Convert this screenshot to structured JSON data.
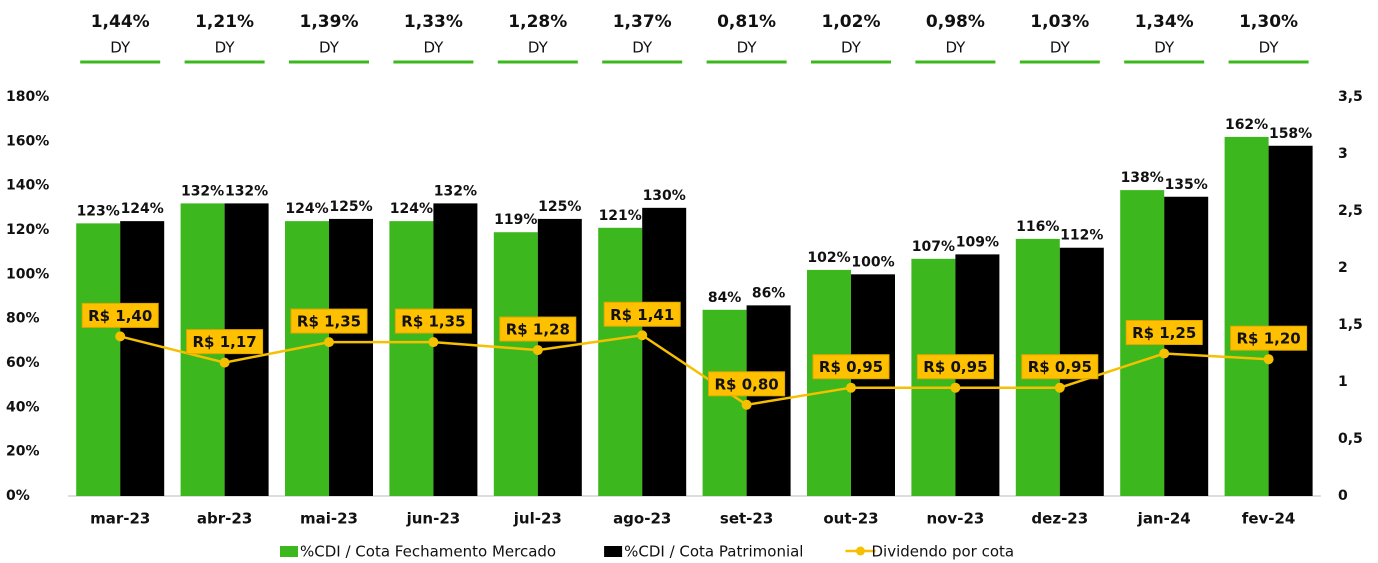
{
  "chart_data": {
    "type": "bar-line",
    "categories": [
      "mar-23",
      "abr-23",
      "mai-23",
      "jun-23",
      "jul-23",
      "ago-23",
      "set-23",
      "out-23",
      "nov-23",
      "dez-23",
      "jan-24",
      "fev-24"
    ],
    "dy": {
      "label": "DY",
      "color": "#3cb81e",
      "values": [
        1.44,
        1.21,
        1.39,
        1.33,
        1.28,
        1.37,
        0.81,
        1.02,
        0.98,
        1.03,
        1.34,
        1.3
      ],
      "value_labels": [
        "1,44%",
        "1,21%",
        "1,39%",
        "1,33%",
        "1,28%",
        "1,37%",
        "0,81%",
        "1,02%",
        "0,98%",
        "1,03%",
        "1,34%",
        "1,30%"
      ]
    },
    "series": [
      {
        "name": "%CDI / Cota Fechamento Mercado",
        "color": "#3cb81e",
        "type": "bar",
        "values": [
          123,
          132,
          124,
          124,
          119,
          121,
          84,
          102,
          107,
          116,
          138,
          162
        ],
        "value_labels": [
          "123%",
          "132%",
          "124%",
          "124%",
          "119%",
          "121%",
          "84%",
          "102%",
          "107%",
          "116%",
          "138%",
          "162%"
        ]
      },
      {
        "name": "%CDI / Cota Patrimonial",
        "color": "#000000",
        "type": "bar",
        "values": [
          124,
          132,
          125,
          132,
          125,
          130,
          86,
          100,
          109,
          112,
          135,
          158
        ],
        "value_labels": [
          "124%",
          "132%",
          "125%",
          "132%",
          "125%",
          "130%",
          "86%",
          "100%",
          "109%",
          "112%",
          "135%",
          "158%"
        ]
      },
      {
        "name": "Dividendo por cota",
        "color": "#f5c000",
        "type": "line",
        "axis": "y2",
        "values": [
          1.4,
          1.17,
          1.35,
          1.35,
          1.28,
          1.41,
          0.8,
          0.95,
          0.95,
          0.95,
          1.25,
          1.2
        ],
        "value_labels": [
          "R$ 1,40",
          "R$ 1,17",
          "R$ 1,35",
          "R$ 1,35",
          "R$ 1,28",
          "R$ 1,41",
          "R$ 0,80",
          "R$ 0,95",
          "R$ 0,95",
          "R$ 0,95",
          "R$ 1,25",
          "R$ 1,20"
        ]
      }
    ],
    "ylim": [
      0,
      180
    ],
    "yticks": [
      {
        "value": 0,
        "label": "0%"
      },
      {
        "value": 20,
        "label": "20%"
      },
      {
        "value": 40,
        "label": "40%"
      },
      {
        "value": 60,
        "label": "60%"
      },
      {
        "value": 80,
        "label": "80%"
      },
      {
        "value": 100,
        "label": "100%"
      },
      {
        "value": 120,
        "label": "120%"
      },
      {
        "value": 140,
        "label": "140%"
      },
      {
        "value": 160,
        "label": "160%"
      },
      {
        "value": 180,
        "label": "180%"
      }
    ],
    "y2lim": [
      0,
      3.5
    ],
    "y2ticks": [
      0,
      {
        "value": 0.5,
        "label": "0,5"
      },
      1,
      {
        "value": 1.5,
        "label": "1,5"
      },
      2,
      {
        "value": 2.5,
        "label": "2,5"
      },
      3,
      {
        "value": 3.5,
        "label": "3,5"
      }
    ],
    "grid": false
  }
}
